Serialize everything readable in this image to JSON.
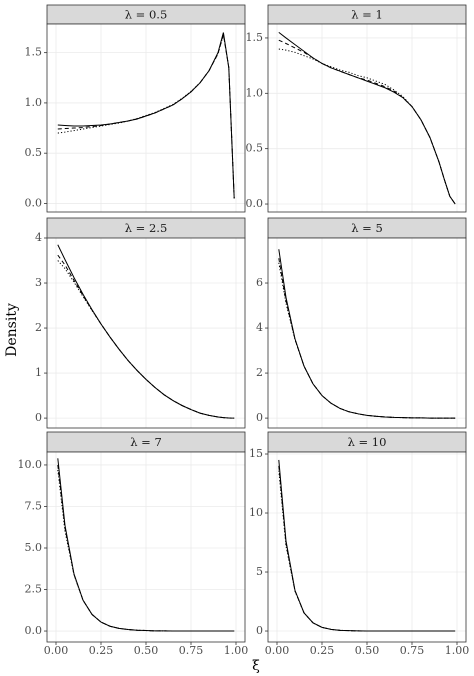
{
  "xlabel": "ξ",
  "ylabel": "Density",
  "xlim": [
    -0.05,
    1.05
  ],
  "xticks": [
    {
      "value": 0,
      "label": "0.00"
    },
    {
      "value": 0.25,
      "label": "0.25"
    },
    {
      "value": 0.5,
      "label": "0.50"
    },
    {
      "value": 0.75,
      "label": "0.75"
    },
    {
      "value": 1,
      "label": "1.00"
    }
  ],
  "chart_data": [
    {
      "type": "line",
      "title": "λ = 0.5",
      "ylim": [
        -0.085,
        1.785
      ],
      "yticks": [
        {
          "value": 0,
          "label": "0.0"
        },
        {
          "value": 0.5,
          "label": "0.5"
        },
        {
          "value": 1,
          "label": "1.0"
        },
        {
          "value": 1.5,
          "label": "1.5"
        }
      ],
      "x": [
        0.01,
        0.05,
        0.1,
        0.15,
        0.2,
        0.25,
        0.3,
        0.35,
        0.4,
        0.45,
        0.5,
        0.55,
        0.6,
        0.65,
        0.7,
        0.75,
        0.8,
        0.85,
        0.9,
        0.93,
        0.96,
        0.99
      ],
      "series": [
        {
          "color": "#000000",
          "dash": "solid",
          "values": [
            0.78,
            0.775,
            0.77,
            0.77,
            0.775,
            0.78,
            0.79,
            0.805,
            0.82,
            0.84,
            0.87,
            0.9,
            0.94,
            0.98,
            1.04,
            1.11,
            1.2,
            1.32,
            1.5,
            1.7,
            1.35,
            0.05
          ]
        },
        {
          "color": "#000000",
          "dash": "dashed",
          "values": [
            0.74,
            0.745,
            0.75,
            0.755,
            0.765,
            0.775,
            0.79,
            0.805,
            0.82,
            0.84,
            0.87,
            0.9,
            0.94,
            0.98,
            1.04,
            1.11,
            1.2,
            1.32,
            1.49,
            1.68,
            1.35,
            0.05
          ]
        },
        {
          "color": "#000000",
          "dash": "dotted",
          "values": [
            0.7,
            0.71,
            0.725,
            0.74,
            0.755,
            0.77,
            0.785,
            0.8,
            0.82,
            0.845,
            0.875,
            0.905,
            0.945,
            0.985,
            1.045,
            1.115,
            1.2,
            1.32,
            1.49,
            1.68,
            1.35,
            0.05
          ]
        }
      ]
    },
    {
      "type": "line",
      "title": "λ = 1",
      "ylim": [
        -0.072,
        1.626
      ],
      "yticks": [
        {
          "value": 0,
          "label": "0.0"
        },
        {
          "value": 0.5,
          "label": "0.5"
        },
        {
          "value": 1,
          "label": "1.0"
        },
        {
          "value": 1.5,
          "label": "1.5"
        }
      ],
      "x": [
        0.01,
        0.05,
        0.1,
        0.15,
        0.2,
        0.25,
        0.3,
        0.35,
        0.4,
        0.45,
        0.5,
        0.55,
        0.6,
        0.65,
        0.7,
        0.75,
        0.8,
        0.85,
        0.9,
        0.93,
        0.96,
        0.99
      ],
      "series": [
        {
          "color": "#000000",
          "dash": "solid",
          "values": [
            1.55,
            1.5,
            1.44,
            1.38,
            1.32,
            1.27,
            1.23,
            1.2,
            1.17,
            1.14,
            1.11,
            1.08,
            1.05,
            1.01,
            0.96,
            0.88,
            0.76,
            0.6,
            0.38,
            0.22,
            0.07,
            0
          ]
        },
        {
          "color": "#000000",
          "dash": "dashed",
          "values": [
            1.48,
            1.45,
            1.41,
            1.37,
            1.32,
            1.27,
            1.23,
            1.2,
            1.17,
            1.14,
            1.12,
            1.09,
            1.06,
            1.02,
            0.96,
            0.88,
            0.76,
            0.6,
            0.38,
            0.22,
            0.07,
            0
          ]
        },
        {
          "color": "#000000",
          "dash": "dotted",
          "values": [
            1.4,
            1.39,
            1.37,
            1.34,
            1.31,
            1.27,
            1.24,
            1.21,
            1.19,
            1.16,
            1.14,
            1.11,
            1.08,
            1.03,
            0.97,
            0.88,
            0.76,
            0.6,
            0.38,
            0.22,
            0.07,
            0
          ]
        }
      ]
    },
    {
      "type": "line",
      "title": "λ = 2.5",
      "ylim": [
        -0.22,
        4.0
      ],
      "yticks": [
        0,
        1,
        2,
        3,
        4
      ],
      "x": [
        0.01,
        0.05,
        0.1,
        0.15,
        0.2,
        0.25,
        0.3,
        0.35,
        0.4,
        0.45,
        0.5,
        0.55,
        0.6,
        0.65,
        0.7,
        0.75,
        0.8,
        0.85,
        0.9,
        0.93,
        0.96,
        0.99
      ],
      "series": [
        {
          "color": "#000000",
          "dash": "solid",
          "values": [
            3.85,
            3.52,
            3.12,
            2.75,
            2.41,
            2.09,
            1.8,
            1.53,
            1.28,
            1.06,
            0.86,
            0.68,
            0.52,
            0.39,
            0.28,
            0.19,
            0.11,
            0.06,
            0.025,
            0.01,
            0.001,
            0
          ]
        },
        {
          "color": "#000000",
          "dash": "dashed",
          "values": [
            3.62,
            3.4,
            3.06,
            2.72,
            2.4,
            2.09,
            1.8,
            1.53,
            1.28,
            1.06,
            0.86,
            0.68,
            0.52,
            0.39,
            0.28,
            0.19,
            0.11,
            0.06,
            0.025,
            0.01,
            0.001,
            0
          ]
        },
        {
          "color": "#000000",
          "dash": "dotted",
          "values": [
            3.5,
            3.32,
            3.02,
            2.7,
            2.39,
            2.09,
            1.8,
            1.53,
            1.28,
            1.06,
            0.86,
            0.68,
            0.52,
            0.39,
            0.28,
            0.19,
            0.11,
            0.06,
            0.025,
            0.01,
            0.001,
            0
          ]
        }
      ]
    },
    {
      "type": "line",
      "title": "λ = 5",
      "ylim": [
        -0.44,
        8.0
      ],
      "yticks": [
        0,
        2,
        4,
        6
      ],
      "x": [
        0.01,
        0.05,
        0.1,
        0.15,
        0.2,
        0.25,
        0.3,
        0.35,
        0.4,
        0.45,
        0.5,
        0.55,
        0.6,
        0.65,
        0.7,
        0.75,
        0.8,
        0.85,
        0.9,
        0.93,
        0.96,
        0.99
      ],
      "series": [
        {
          "color": "#000000",
          "dash": "solid",
          "values": [
            7.5,
            5.36,
            3.52,
            2.31,
            1.52,
            1.0,
            0.66,
            0.43,
            0.28,
            0.19,
            0.12,
            0.08,
            0.05,
            0.03,
            0.02,
            0.01,
            0.01,
            0,
            0,
            0,
            0,
            0
          ]
        },
        {
          "color": "#000000",
          "dash": "dashed",
          "values": [
            7.1,
            5.2,
            3.5,
            2.31,
            1.52,
            1.0,
            0.66,
            0.43,
            0.28,
            0.19,
            0.12,
            0.08,
            0.05,
            0.03,
            0.02,
            0.01,
            0.01,
            0,
            0,
            0,
            0,
            0
          ]
        },
        {
          "color": "#000000",
          "dash": "dotted",
          "values": [
            6.9,
            5.1,
            3.48,
            2.31,
            1.52,
            1.0,
            0.66,
            0.43,
            0.28,
            0.19,
            0.12,
            0.08,
            0.05,
            0.03,
            0.02,
            0.01,
            0.01,
            0,
            0,
            0,
            0,
            0
          ]
        }
      ]
    },
    {
      "type": "line",
      "title": "λ = 7",
      "ylim": [
        -0.66,
        10.78
      ],
      "yticks": [
        {
          "value": 0,
          "label": "0.0"
        },
        {
          "value": 2.5,
          "label": "2.5"
        },
        {
          "value": 5,
          "label": "5.0"
        },
        {
          "value": 7.5,
          "label": "7.5"
        },
        {
          "value": 10,
          "label": "10.0"
        }
      ],
      "x": [
        0.01,
        0.05,
        0.1,
        0.15,
        0.2,
        0.25,
        0.3,
        0.35,
        0.4,
        0.45,
        0.5,
        0.55,
        0.6,
        0.65,
        0.7,
        0.75,
        0.8,
        0.85,
        0.9,
        0.93,
        0.96,
        0.99
      ],
      "series": [
        {
          "color": "#000000",
          "dash": "solid",
          "values": [
            10.4,
            6.36,
            3.44,
            1.86,
            1.0,
            0.54,
            0.29,
            0.16,
            0.09,
            0.05,
            0.03,
            0.01,
            0.01,
            0,
            0,
            0,
            0,
            0,
            0,
            0,
            0,
            0
          ]
        },
        {
          "color": "#000000",
          "dash": "dashed",
          "values": [
            10.0,
            6.2,
            3.4,
            1.86,
            1.0,
            0.54,
            0.29,
            0.16,
            0.09,
            0.05,
            0.03,
            0.01,
            0.01,
            0,
            0,
            0,
            0,
            0,
            0,
            0,
            0,
            0
          ]
        },
        {
          "color": "#000000",
          "dash": "dotted",
          "values": [
            9.7,
            6.0,
            3.38,
            1.86,
            1.0,
            0.54,
            0.29,
            0.16,
            0.09,
            0.05,
            0.03,
            0.01,
            0.01,
            0,
            0,
            0,
            0,
            0,
            0,
            0,
            0,
            0
          ]
        }
      ]
    },
    {
      "type": "line",
      "title": "λ = 10",
      "ylim": [
        -0.93,
        15.17
      ],
      "yticks": [
        0,
        5,
        10,
        15
      ],
      "x": [
        0.01,
        0.05,
        0.1,
        0.15,
        0.2,
        0.25,
        0.3,
        0.35,
        0.4,
        0.45,
        0.5,
        0.55,
        0.6,
        0.65,
        0.7,
        0.75,
        0.8,
        0.85,
        0.9,
        0.93,
        0.96,
        0.99
      ],
      "series": [
        {
          "color": "#000000",
          "dash": "solid",
          "values": [
            14.5,
            7.64,
            3.44,
            1.54,
            0.69,
            0.31,
            0.14,
            0.06,
            0.03,
            0.01,
            0,
            0,
            0,
            0,
            0,
            0,
            0,
            0,
            0,
            0,
            0,
            0
          ]
        },
        {
          "color": "#000000",
          "dash": "dashed",
          "values": [
            14.0,
            7.4,
            3.4,
            1.54,
            0.69,
            0.31,
            0.14,
            0.06,
            0.03,
            0.01,
            0,
            0,
            0,
            0,
            0,
            0,
            0,
            0,
            0,
            0,
            0,
            0
          ]
        },
        {
          "color": "#000000",
          "dash": "dotted",
          "values": [
            13.6,
            7.2,
            3.38,
            1.54,
            0.69,
            0.31,
            0.14,
            0.06,
            0.03,
            0.01,
            0,
            0,
            0,
            0,
            0,
            0,
            0,
            0,
            0,
            0,
            0,
            0
          ]
        }
      ]
    }
  ]
}
